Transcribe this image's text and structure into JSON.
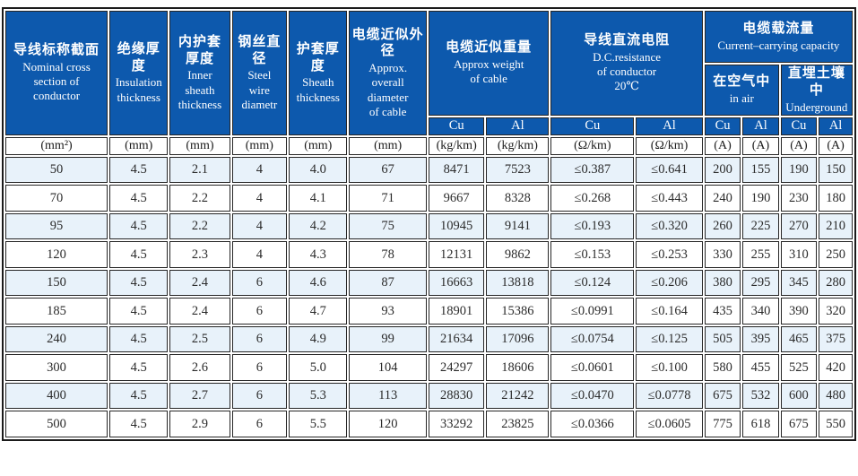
{
  "header": {
    "cols": [
      {
        "zh": "导线标称截面",
        "en": "Nominal  cross\nsection of\nconductor"
      },
      {
        "zh": "绝缘厚度",
        "en": "Insulation\nthickness"
      },
      {
        "zh": "内护套\n厚度",
        "en": "Inner\nsheath\nthickness"
      },
      {
        "zh": "钢丝直径",
        "en": "Steel\nwire\ndiametr"
      },
      {
        "zh": "护套厚度",
        "en": "Sheath\nthickness"
      },
      {
        "zh": "电缆近似外径",
        "en": "Approx.\noverall\ndiameter\nof cable"
      }
    ],
    "groups": {
      "weight": {
        "zh": "电缆近似重量",
        "en": "Approx weight\nof cable"
      },
      "resistance": {
        "zh": "导线直流电阻",
        "en": "D.C.resistance\nof conductor\n20℃"
      },
      "capacity": {
        "zh": "电缆载流量",
        "en": "Current–carrying capacity"
      },
      "in_air": {
        "zh": "在空气中",
        "en": "in air"
      },
      "underground": {
        "zh": "直埋土壤中",
        "en": "Underground"
      }
    },
    "metal_row": [
      "Cu",
      "Al",
      "Cu",
      "Al",
      "Cu",
      "Al",
      "Cu",
      "Al"
    ],
    "units": [
      "(mm²)",
      "(mm)",
      "(mm)",
      "(mm)",
      "(mm)",
      "(mm)",
      "(kg/km)",
      "(kg/km)",
      "(Ω/km)",
      "(Ω/km)",
      "(A)",
      "(A)",
      "(A)",
      "(A)"
    ]
  },
  "colors": {
    "header_blue": "#0d59ad",
    "stripe_blue": "#e8f2fa",
    "grid_black": "#262626"
  },
  "rows": [
    [
      "50",
      "4.5",
      "2.1",
      "4",
      "4.0",
      "67",
      "8471",
      "7523",
      "≤0.387",
      "≤0.641",
      "200",
      "155",
      "190",
      "150"
    ],
    [
      "70",
      "4.5",
      "2.2",
      "4",
      "4.1",
      "71",
      "9667",
      "8328",
      "≤0.268",
      "≤0.443",
      "240",
      "190",
      "230",
      "180"
    ],
    [
      "95",
      "4.5",
      "2.2",
      "4",
      "4.2",
      "75",
      "10945",
      "9141",
      "≤0.193",
      "≤0.320",
      "260",
      "225",
      "270",
      "210"
    ],
    [
      "120",
      "4.5",
      "2.3",
      "4",
      "4.3",
      "78",
      "12131",
      "9862",
      "≤0.153",
      "≤0.253",
      "330",
      "255",
      "310",
      "250"
    ],
    [
      "150",
      "4.5",
      "2.4",
      "6",
      "4.6",
      "87",
      "16663",
      "13818",
      "≤0.124",
      "≤0.206",
      "380",
      "295",
      "345",
      "280"
    ],
    [
      "185",
      "4.5",
      "2.4",
      "6",
      "4.7",
      "93",
      "18901",
      "15386",
      "≤0.0991",
      "≤0.164",
      "435",
      "340",
      "390",
      "320"
    ],
    [
      "240",
      "4.5",
      "2.5",
      "6",
      "4.9",
      "99",
      "21634",
      "17096",
      "≤0.0754",
      "≤0.125",
      "505",
      "395",
      "465",
      "375"
    ],
    [
      "300",
      "4.5",
      "2.6",
      "6",
      "5.0",
      "104",
      "24297",
      "18606",
      "≤0.0601",
      "≤0.100",
      "580",
      "455",
      "525",
      "420"
    ],
    [
      "400",
      "4.5",
      "2.7",
      "6",
      "5.3",
      "113",
      "28830",
      "21242",
      "≤0.0470",
      "≤0.0778",
      "675",
      "532",
      "600",
      "480"
    ],
    [
      "500",
      "4.5",
      "2.9",
      "6",
      "5.5",
      "120",
      "33292",
      "23825",
      "≤0.0366",
      "≤0.0605",
      "775",
      "618",
      "675",
      "550"
    ]
  ]
}
